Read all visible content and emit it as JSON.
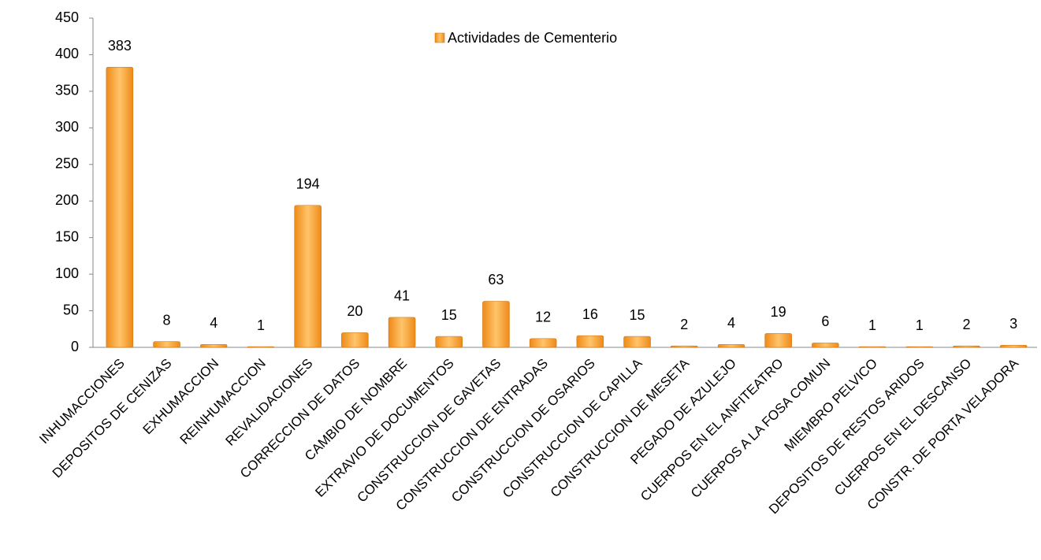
{
  "chart_data": {
    "type": "bar",
    "categories": [
      "INHUMACCIONES",
      "DEPOSITOS DE CENIZAS",
      "EXHUMACCION",
      "REINHUMACCION",
      "REVALIDACIONES",
      "CORRECCION DE DATOS",
      "CAMBIO DE NOMBRE",
      "EXTRAVIO DE DOCUMENTOS",
      "CONSTRUCCION DE GAVETAS",
      "CONSTRUCCION DE ENTRADAS",
      "CONSTRUCCION DE OSARIOS",
      "CONSTRUCCION DE CAPILLA",
      "CONSTRUCCION DE MESETA",
      "PEGADO DE AZULEJO",
      "CUERPOS EN EL ANFITEATRO",
      "CUERPOS A LA FOSA COMUN",
      "MIEMBRO PELVICO",
      "DEPOSITOS DE RESTOS ARIDOS",
      "CUERPOS EN EL DESCANSO",
      "CONSTR. DE PORTA VELADORA"
    ],
    "series": [
      {
        "name": "Actividades de Cementerio",
        "color": "#ee8a18",
        "values": [
          383,
          8,
          4,
          1,
          194,
          20,
          41,
          15,
          63,
          12,
          16,
          15,
          2,
          4,
          19,
          6,
          1,
          1,
          2,
          3
        ]
      }
    ],
    "ylim": [
      0,
      450
    ],
    "yticks": [
      0,
      50,
      100,
      150,
      200,
      250,
      300,
      350,
      400,
      450
    ],
    "grid": false
  }
}
